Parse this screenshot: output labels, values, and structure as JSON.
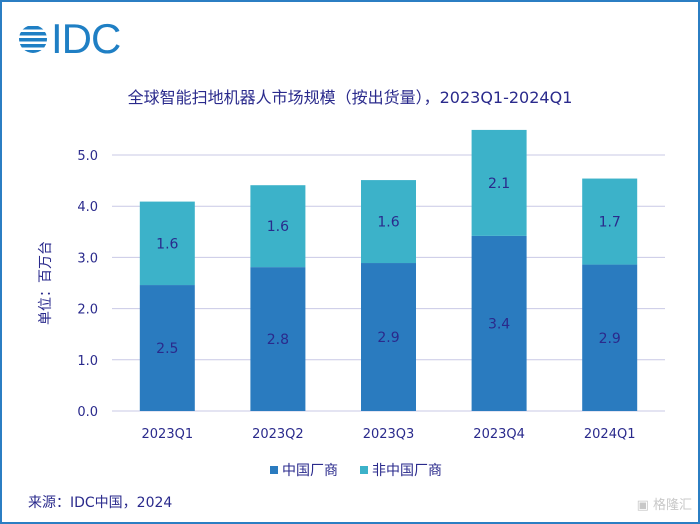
{
  "logo": {
    "text": "IDC"
  },
  "watermark": "格隆汇",
  "source": "来源：IDC中国，2024",
  "chart_data": {
    "type": "bar",
    "stacked": true,
    "title": "全球智能扫地机器人市场规模（按出货量），2023Q1-2024Q1",
    "ylabel": "单位：百万台",
    "xlabel": "",
    "ylim": [
      0,
      5.0
    ],
    "yticks": [
      "0.0",
      "1.0",
      "2.0",
      "3.0",
      "4.0",
      "5.0"
    ],
    "grid": true,
    "legend_position": "bottom",
    "categories": [
      "2023Q1",
      "2023Q2",
      "2023Q3",
      "2023Q4",
      "2024Q1"
    ],
    "series": [
      {
        "name": "中国厂商",
        "color": "#2a7bbf",
        "values": [
          2.46,
          2.81,
          2.89,
          3.42,
          2.86
        ]
      },
      {
        "name": "非中国厂商",
        "color": "#3cb2c9",
        "values": [
          1.63,
          1.6,
          1.62,
          2.07,
          1.68
        ]
      }
    ]
  }
}
